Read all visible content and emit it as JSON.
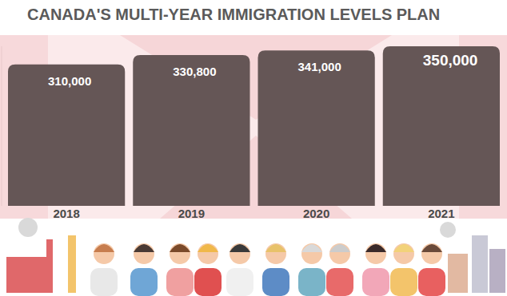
{
  "chart_data": {
    "type": "bar",
    "title": "CANADA'S MULTI-YEAR IMMIGRATION LEVELS PLAN",
    "categories": [
      "2018",
      "2019",
      "2020",
      "2021"
    ],
    "values": [
      310000,
      330800,
      341000,
      350000
    ],
    "value_labels": [
      "310,000",
      "330,800",
      "341,000",
      "350,000"
    ],
    "color": "#655656",
    "ylim": [
      0,
      350000
    ],
    "data_labels": true,
    "tick_labels": "x",
    "grid": false
  }
}
